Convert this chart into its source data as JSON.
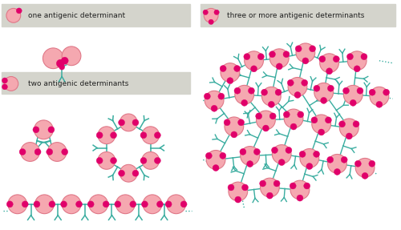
{
  "bg_color": "#ffffff",
  "label_box_color": "#d4d4cc",
  "antigen_large_color": "#f5a8b0",
  "antigen_large_edge": "#e07888",
  "antigen_small_color": "#e0006a",
  "antibody_color": "#3aada0",
  "label1": "one antigenic determinant",
  "label2": "two antigenic determinants",
  "label3": "three or more antigenic determinants",
  "label_fontsize": 6.5,
  "fig_width": 5.0,
  "fig_height": 2.87,
  "dpi": 100
}
